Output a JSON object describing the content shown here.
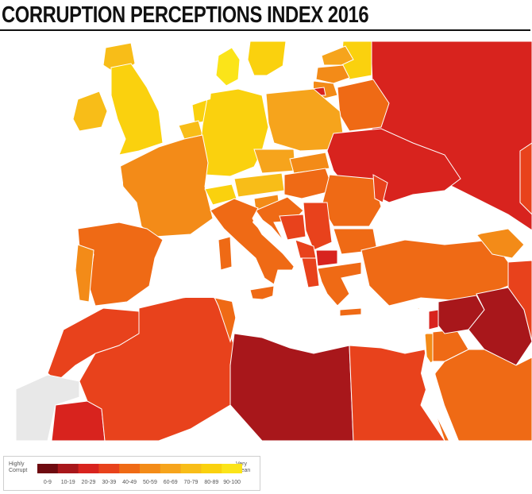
{
  "title": "CORRUPTION PERCEPTIONS INDEX 2016",
  "colors": {
    "sea": "#ffffff",
    "no_data": "#e8e8e8",
    "border": "#ffffff"
  },
  "legend": {
    "low_label_1": "Highly",
    "low_label_2": "Corrupt",
    "high_label_1": "Very",
    "high_label_2": "Clean",
    "bins": [
      {
        "label": "0-9",
        "color": "#6e0b10"
      },
      {
        "label": "10-19",
        "color": "#a8171b"
      },
      {
        "label": "20-29",
        "color": "#d8231e"
      },
      {
        "label": "30-39",
        "color": "#e8421c"
      },
      {
        "label": "40-49",
        "color": "#ef6a15"
      },
      {
        "label": "50-59",
        "color": "#f38b18"
      },
      {
        "label": "60-69",
        "color": "#f6a41c"
      },
      {
        "label": "70-79",
        "color": "#f8bd18"
      },
      {
        "label": "80-89",
        "color": "#fad10e"
      },
      {
        "label": "90-100",
        "color": "#fbe419"
      }
    ]
  },
  "regions": [
    {
      "name": "iceland-scandinavia-top",
      "color": "#fad10e"
    },
    {
      "name": "russia",
      "color": "#d8231e"
    },
    {
      "name": "libya",
      "color": "#a8171b"
    },
    {
      "name": "syria",
      "color": "#a8171b"
    }
  ]
}
